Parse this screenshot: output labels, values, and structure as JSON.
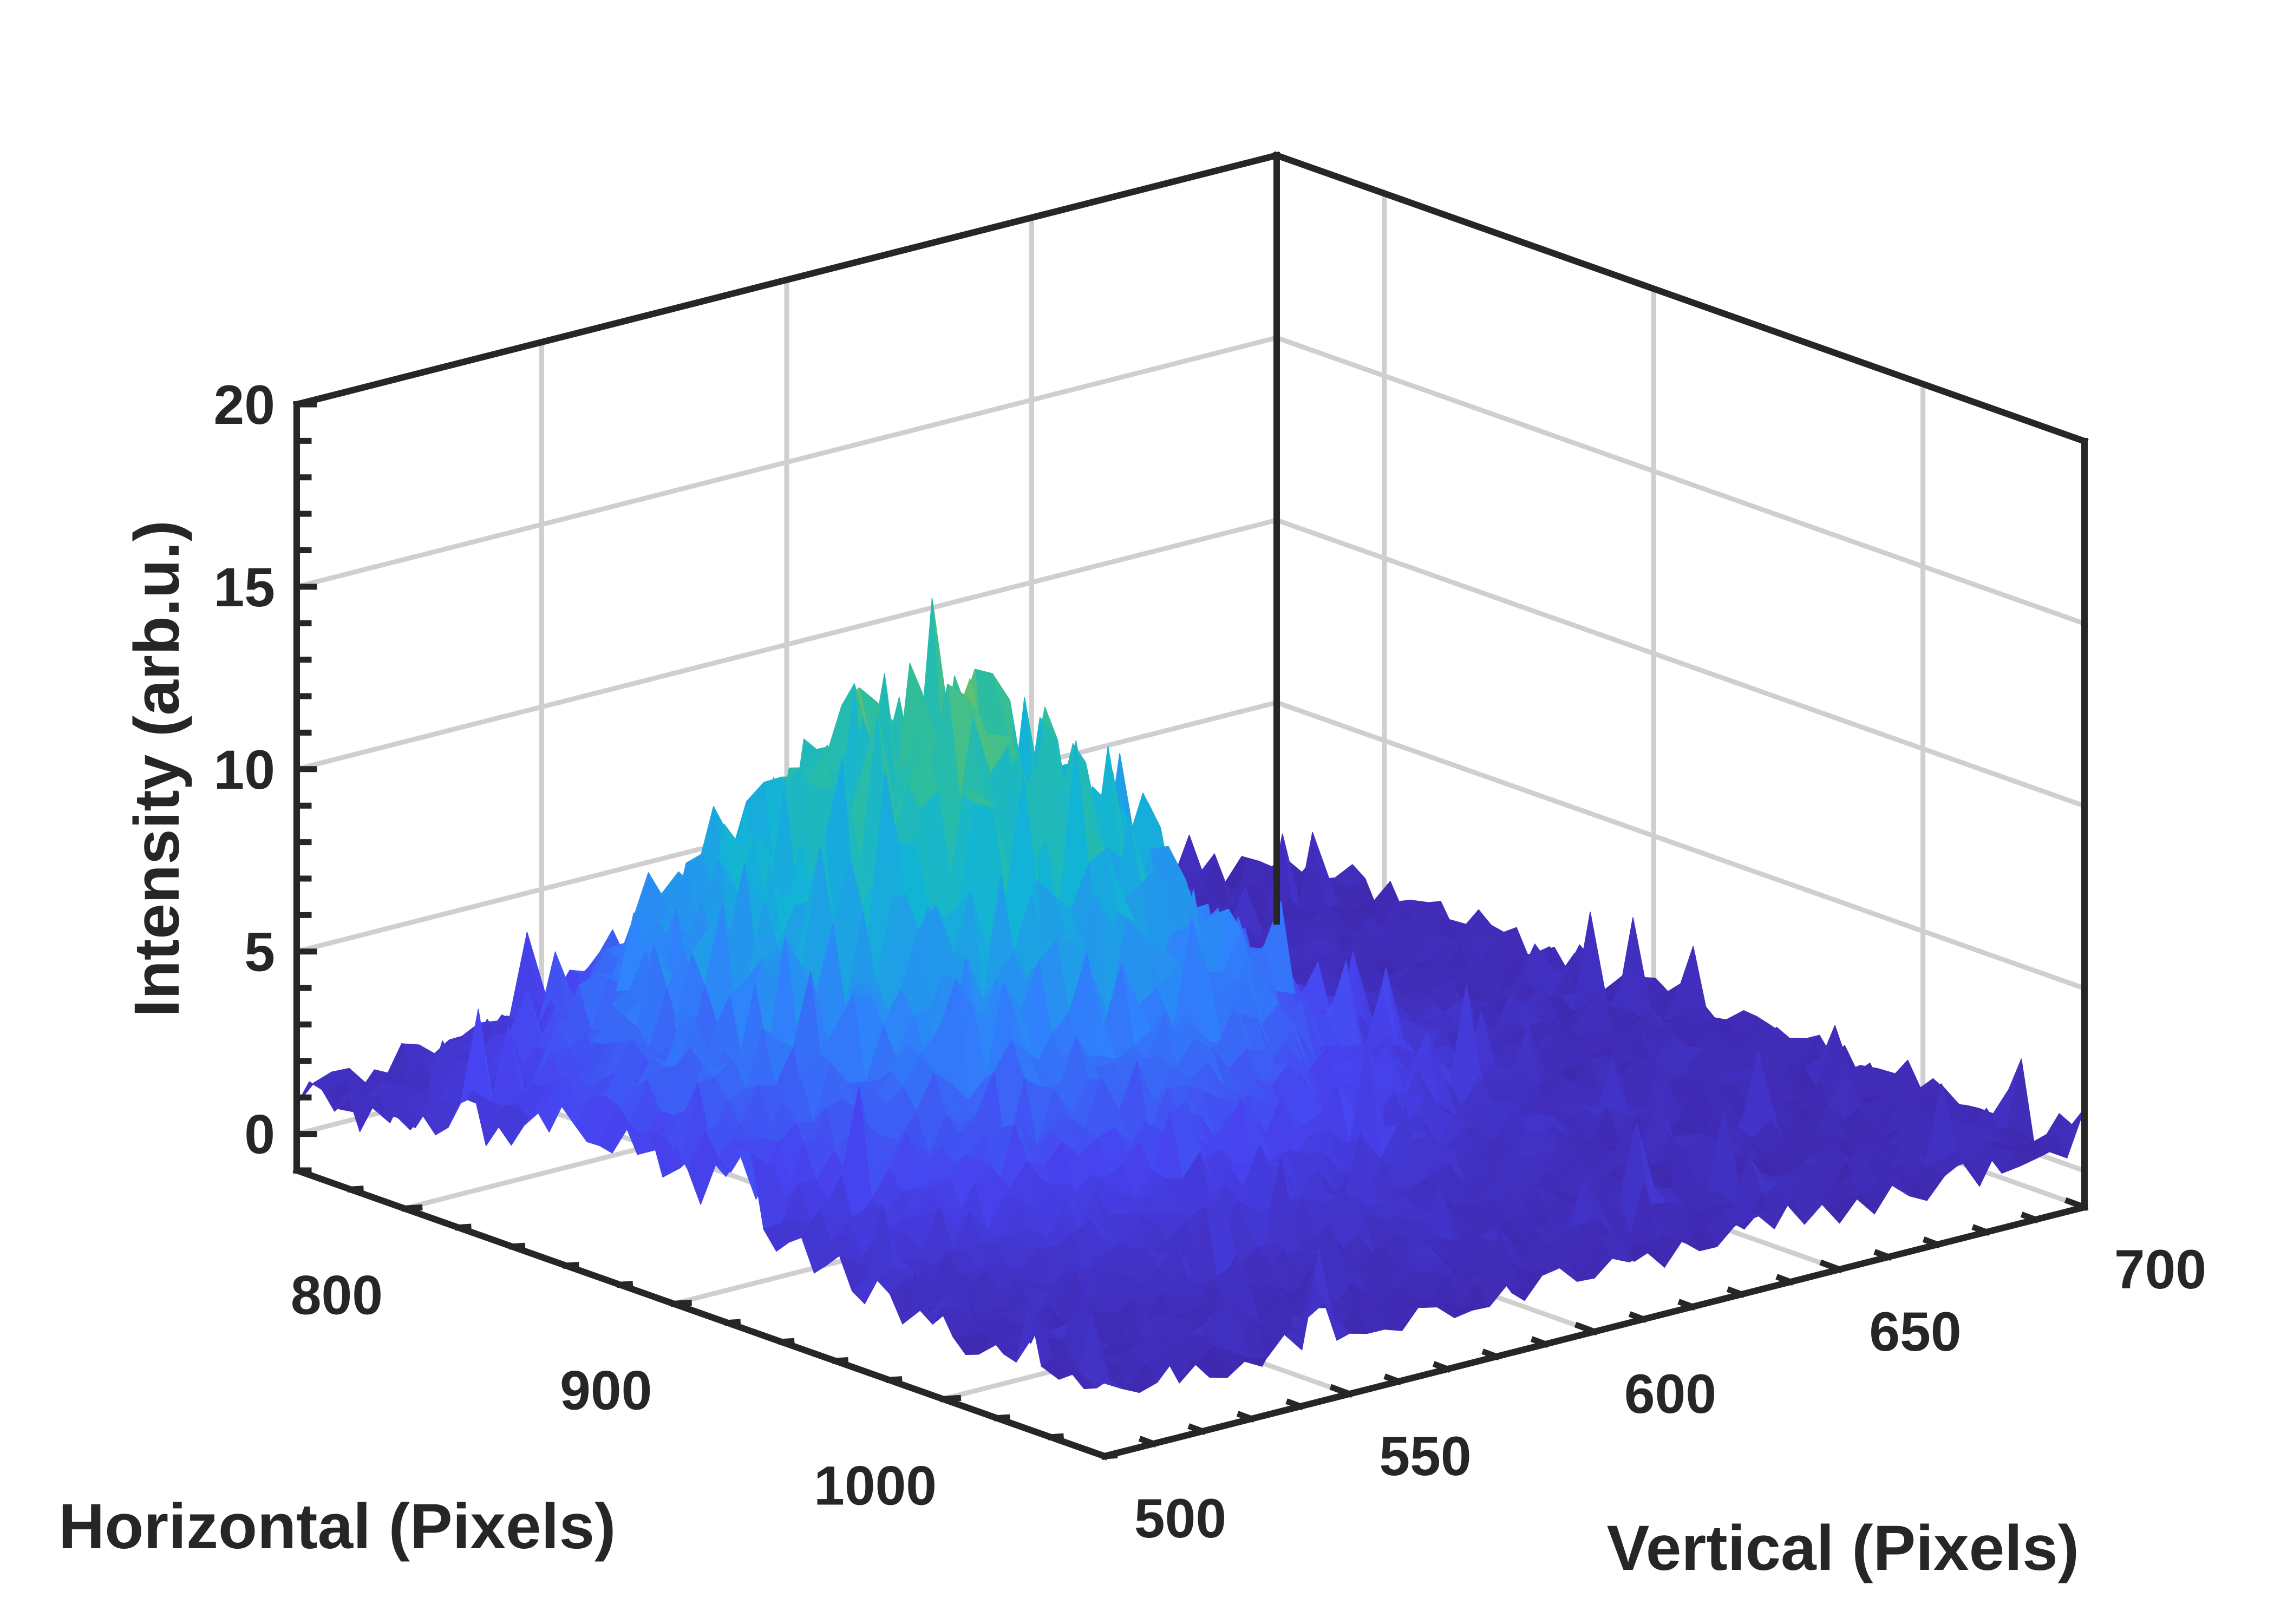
{
  "chart_data": {
    "type": "surface",
    "title": "",
    "colormap": [
      "#3e26a8",
      "#4743f0",
      "#2f82fb",
      "#12b4d6",
      "#2ebe9c",
      "#86c154"
    ],
    "axes": {
      "horizontal": {
        "label": "Horizontal (Pixels)",
        "range": [
          760,
          1060
        ],
        "ticks": [
          800,
          900,
          1000
        ],
        "tick_labels": [
          "800",
          "900",
          "1000"
        ]
      },
      "vertical": {
        "label": "Vertical (Pixels)",
        "range": [
          500,
          700
        ],
        "ticks": [
          500,
          550,
          600,
          650,
          700
        ],
        "tick_labels": [
          "500",
          "550",
          "600",
          "650",
          "700"
        ]
      },
      "intensity": {
        "label": "Intensity (arb.u.)",
        "range": [
          -1,
          20
        ],
        "ticks": [
          0,
          5,
          10,
          15,
          20
        ],
        "tick_labels": [
          "0",
          "5",
          "10",
          "15",
          "20"
        ]
      }
    },
    "peak": {
      "horizontal": 880,
      "vertical": 565,
      "intensity": 14.1
    },
    "background_level": 0.8,
    "grid": true,
    "box": true
  }
}
